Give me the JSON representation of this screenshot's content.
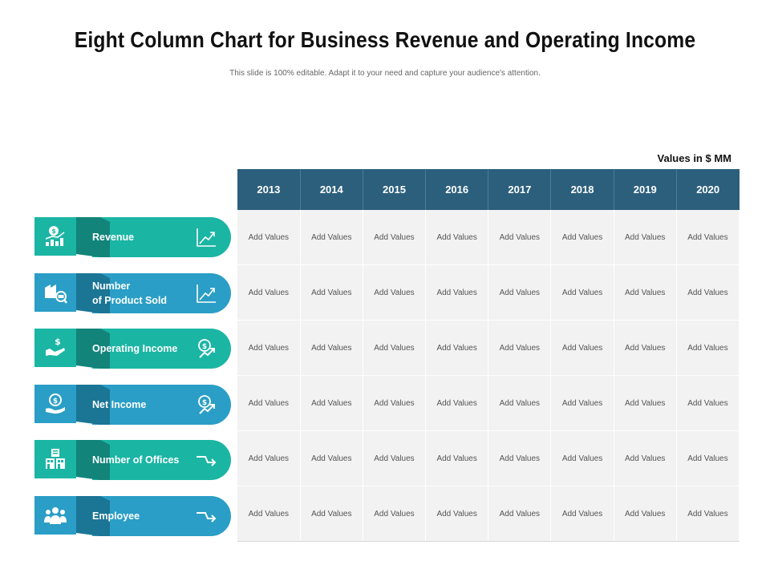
{
  "header": {
    "title": "Eight Column Chart for Business Revenue and Operating Income",
    "subtitle": "This slide is 100% editable. Adapt it to your need and capture your audience's attention.",
    "units": "Values in $ MM"
  },
  "table": {
    "years": [
      "2013",
      "2014",
      "2015",
      "2016",
      "2017",
      "2018",
      "2019",
      "2020"
    ],
    "cell_value": "Add Values"
  },
  "rows": [
    {
      "label_line1": "Revenue",
      "label_line2": "",
      "icon": "money-growth-icon",
      "end_icon": "line-chart-icon",
      "color": "#1bb5a4",
      "dark": "#12847a"
    },
    {
      "label_line1": "Number",
      "label_line2": "of Product Sold",
      "icon": "product-box-icon",
      "end_icon": "line-chart-icon",
      "color": "#2a9ec6",
      "dark": "#1b7595"
    },
    {
      "label_line1": "Operating Income",
      "label_line2": "",
      "icon": "hand-dollar-icon",
      "end_icon": "dollar-growth-icon",
      "color": "#1bb5a4",
      "dark": "#12847a"
    },
    {
      "label_line1": "Net Income",
      "label_line2": "",
      "icon": "coin-hand-icon",
      "end_icon": "dollar-growth-icon",
      "color": "#2a9ec6",
      "dark": "#1b7595"
    },
    {
      "label_line1": "Number of Offices",
      "label_line2": "",
      "icon": "office-building-icon",
      "end_icon": "turn-arrow-icon",
      "color": "#1bb5a4",
      "dark": "#12847a"
    },
    {
      "label_line1": "Employee",
      "label_line2": "",
      "icon": "team-people-icon",
      "end_icon": "turn-arrow-icon",
      "color": "#2a9ec6",
      "dark": "#1b7595"
    }
  ]
}
